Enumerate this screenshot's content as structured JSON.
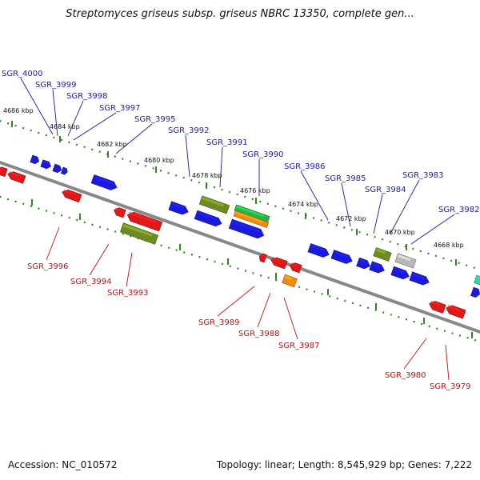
{
  "header": {
    "title": "Streptomyces griseus subsp. griseus NBRC 13350, complete gen..."
  },
  "footer": {
    "accession": "Accession: NC_010572",
    "topology": "Topology: linear; Length: 8,545,929 bp; Genes: 7,222"
  },
  "colors": {
    "forward_gene": "#1a1adc",
    "reverse_gene": "#e01818",
    "olive_gene": "#6e8a22",
    "green_gene": "#1fb848",
    "orange_gene": "#f08a10",
    "gray_gene": "#b8b8b8",
    "cyan_gene": "#20d8a8",
    "forward_label": "#1a1aa8",
    "reverse_label": "#c01010",
    "scale_dots": "#2a8a1a",
    "backbone": "#888888"
  },
  "scale": {
    "ticks": [
      {
        "kbp": 4686,
        "label": "4686 kbp"
      },
      {
        "kbp": 4684,
        "label": "4684 kbp"
      },
      {
        "kbp": 4682,
        "label": "4682 kbp"
      },
      {
        "kbp": 4680,
        "label": "4680 kbp"
      },
      {
        "kbp": 4678,
        "label": "4678 kbp"
      },
      {
        "kbp": 4676,
        "label": "4676 kbp"
      },
      {
        "kbp": 4674,
        "label": "4674 kbp"
      },
      {
        "kbp": 4672,
        "label": "4672 kbp"
      },
      {
        "kbp": 4670,
        "label": "4670 kbp"
      },
      {
        "kbp": 4668,
        "label": "4668 kbp"
      }
    ]
  },
  "genes": [
    {
      "id": "g4000",
      "label": "SGR_4000",
      "strand": "forward",
      "color": "forward_gene"
    },
    {
      "id": "g3999",
      "label": "SGR_3999",
      "strand": "forward",
      "color": "forward_gene"
    },
    {
      "id": "g3998",
      "label": "SGR_3998",
      "strand": "forward",
      "color": "forward_gene"
    },
    {
      "id": "g3997",
      "label": "SGR_3997",
      "strand": "forward",
      "color": "forward_gene"
    },
    {
      "id": "g3996",
      "label": "SGR_3996",
      "strand": "reverse",
      "color": "reverse_gene"
    },
    {
      "id": "g3995",
      "label": "SGR_3995",
      "strand": "forward",
      "color": "forward_gene"
    },
    {
      "id": "g3994",
      "label": "SGR_3994",
      "strand": "reverse",
      "color": "reverse_gene"
    },
    {
      "id": "g3993",
      "label": "SGR_3993",
      "strand": "reverse",
      "color": "olive_gene"
    },
    {
      "id": "g3992",
      "label": "SGR_3992",
      "strand": "forward",
      "color": "forward_gene"
    },
    {
      "id": "g3991",
      "label": "SGR_3991",
      "strand": "forward",
      "color": "olive_gene"
    },
    {
      "id": "g3990",
      "label": "SGR_3990",
      "strand": "forward",
      "color": "green_gene"
    },
    {
      "id": "g3989",
      "label": "SGR_3989",
      "strand": "reverse",
      "color": "reverse_gene"
    },
    {
      "id": "g3988",
      "label": "SGR_3988",
      "strand": "reverse",
      "color": "reverse_gene"
    },
    {
      "id": "g3987",
      "label": "SGR_3987",
      "strand": "reverse",
      "color": "orange_gene"
    },
    {
      "id": "g3986",
      "label": "SGR_3986",
      "strand": "forward",
      "color": "forward_gene"
    },
    {
      "id": "g3985",
      "label": "SGR_3985",
      "strand": "forward",
      "color": "forward_gene"
    },
    {
      "id": "g3984",
      "label": "SGR_3984",
      "strand": "forward",
      "color": "olive_gene"
    },
    {
      "id": "g3983",
      "label": "SGR_3983",
      "strand": "forward",
      "color": "gray_gene"
    },
    {
      "id": "g3982",
      "label": "SGR_3982",
      "strand": "forward",
      "color": "forward_gene"
    },
    {
      "id": "g3980",
      "label": "SGR_3980",
      "strand": "reverse",
      "color": "reverse_gene"
    },
    {
      "id": "g3979",
      "label": "SGR_3979",
      "strand": "reverse",
      "color": "reverse_gene"
    }
  ]
}
